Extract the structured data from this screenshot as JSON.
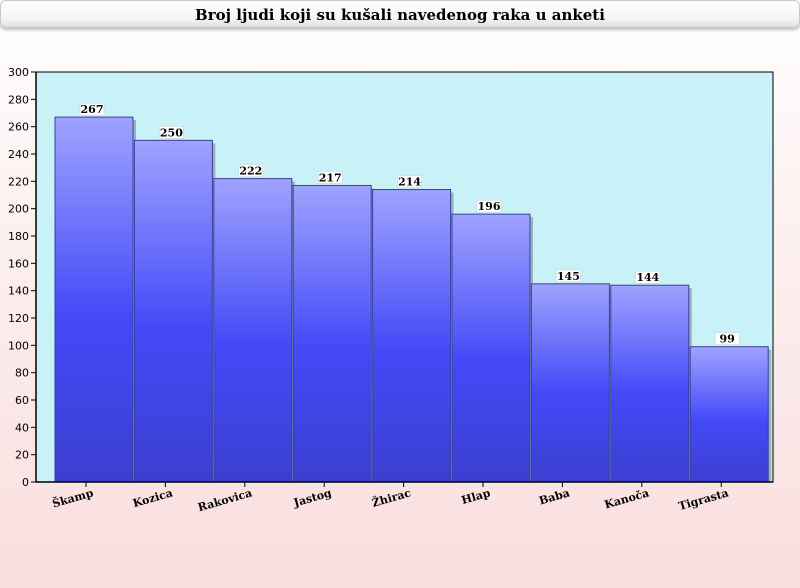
{
  "chart_data": {
    "type": "bar",
    "title": "Broj ljudi koji su kušali navedenog raka u anketi",
    "xlabel": "",
    "ylabel": "",
    "categories": [
      "Škamp",
      "Kozica",
      "Rakovica",
      "Jastog",
      "Žhirac",
      "Hlap",
      "Baba",
      "Kanoča",
      "Tigrasta"
    ],
    "values": [
      267,
      250,
      222,
      217,
      214,
      196,
      145,
      144,
      99
    ],
    "ylim": [
      0,
      300
    ],
    "yticks": [
      0,
      20,
      40,
      60,
      80,
      100,
      120,
      140,
      160,
      180,
      200,
      220,
      240,
      260,
      280,
      300
    ],
    "grid": false,
    "legend": "none",
    "colors": {
      "plot_background": "#c8f2f8",
      "bar_top": "#9aa0ff",
      "bar_mid": "#4147f5",
      "bar_edge": "#3a3f9a"
    }
  }
}
